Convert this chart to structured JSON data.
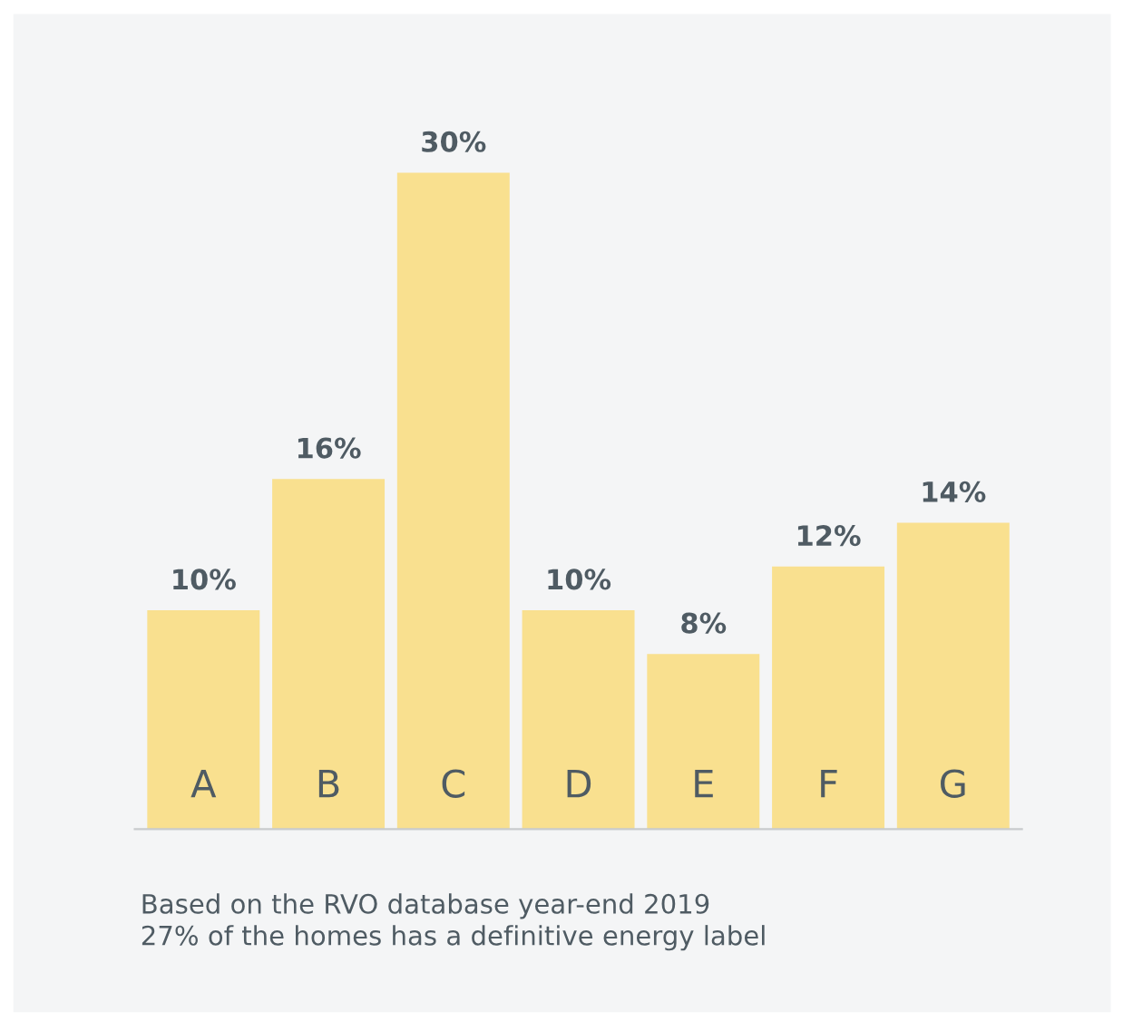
{
  "chart_data": {
    "type": "bar",
    "categories": [
      "A",
      "B",
      "C",
      "D",
      "E",
      "F",
      "G"
    ],
    "values": [
      10,
      16,
      30,
      10,
      8,
      12,
      14
    ],
    "value_labels": [
      "10%",
      "16%",
      "30%",
      "10%",
      "8%",
      "12%",
      "14%"
    ],
    "color": "#f9e08f",
    "annotations": [
      "Based on the RVO database year-end 2019\n27% of the homes has a definitive energy label"
    ],
    "grid": false,
    "legend": false
  }
}
